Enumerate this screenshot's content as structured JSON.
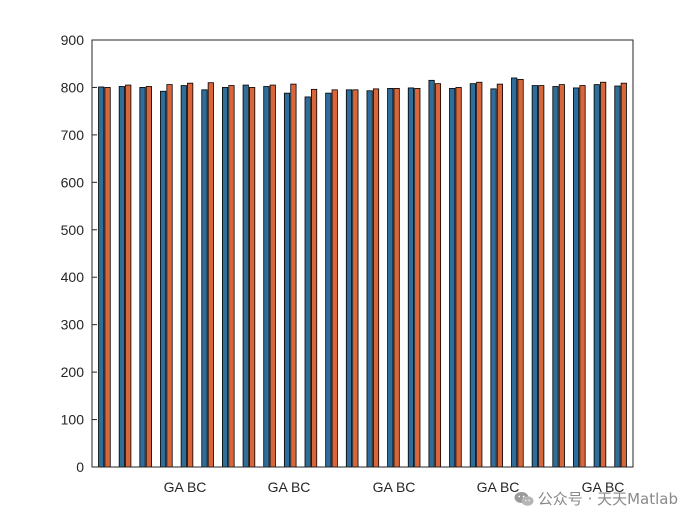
{
  "chart_data": {
    "type": "bar",
    "title": "",
    "xlabel": "",
    "ylabel": "",
    "ylim": [
      0,
      900
    ],
    "yticks": [
      0,
      100,
      200,
      300,
      400,
      500,
      600,
      700,
      800,
      900
    ],
    "x_tick_labels": [
      "GA BC",
      "GA BC",
      "GA BC",
      "GA BC",
      "GA BC"
    ],
    "grid": false,
    "legend": "none",
    "series": [
      {
        "color": "#2f6d9b",
        "values": [
          801,
          802,
          800,
          792,
          804,
          795,
          800,
          805,
          802,
          788,
          780,
          788,
          795,
          793,
          798,
          799,
          815,
          798,
          808,
          797,
          820,
          804,
          802,
          799,
          806,
          803
        ]
      },
      {
        "color": "#d9663a",
        "values": [
          800,
          805,
          802,
          806,
          809,
          810,
          804,
          800,
          805,
          807,
          796,
          795,
          795,
          797,
          798,
          798,
          808,
          800,
          811,
          807,
          817,
          804,
          806,
          804,
          811,
          809
        ]
      }
    ]
  },
  "watermark": {
    "text": "公众号 · 天天Matlab",
    "icon": "wechat-icon"
  }
}
